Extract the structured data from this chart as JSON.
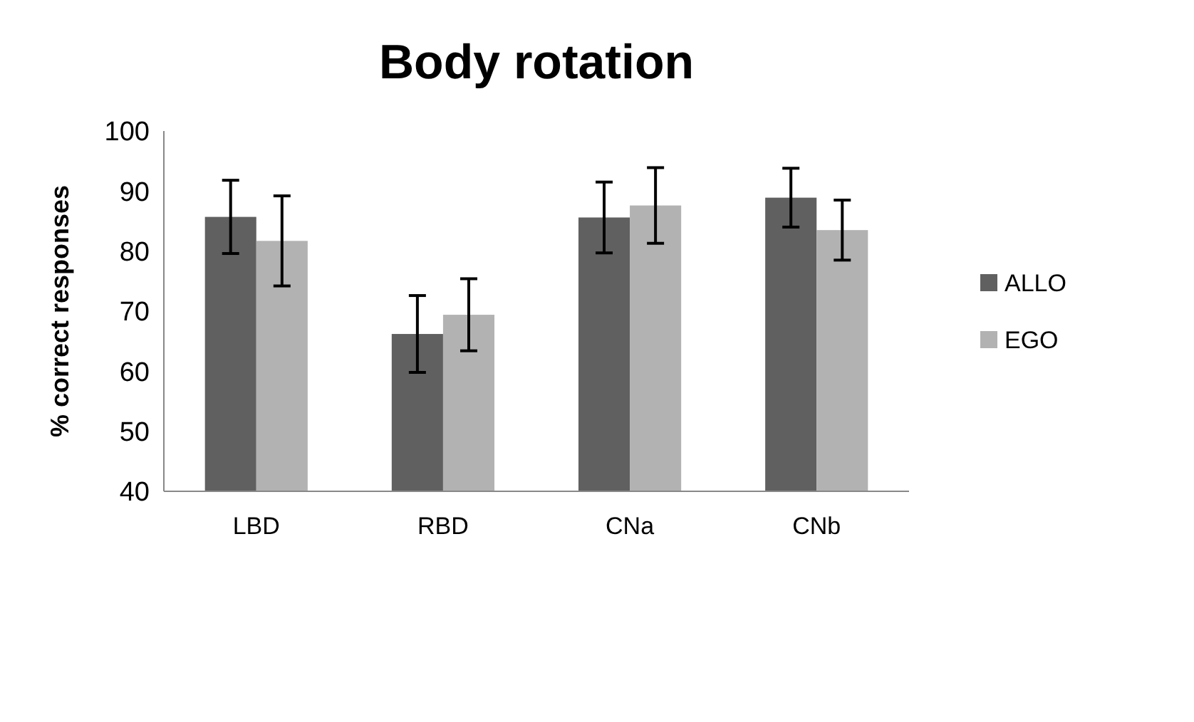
{
  "chart_data": {
    "type": "bar",
    "title": "Body rotation",
    "ylabel": "% correct responses",
    "categories": [
      "LBD",
      "RBD",
      "CNa",
      "CNb"
    ],
    "series": [
      {
        "name": "ALLO",
        "color": "#606060",
        "values": [
          85.7,
          66.2,
          85.6,
          88.9
        ],
        "errors": [
          6.1,
          6.4,
          5.9,
          4.9
        ]
      },
      {
        "name": "EGO",
        "color": "#b2b2b2",
        "values": [
          81.7,
          69.4,
          87.6,
          83.5
        ],
        "errors": [
          7.5,
          6,
          6.3,
          5
        ]
      }
    ],
    "ylim": [
      40,
      100
    ],
    "yticks": [
      40,
      50,
      60,
      70,
      80,
      90,
      100
    ],
    "grid": false,
    "legend": "right"
  }
}
